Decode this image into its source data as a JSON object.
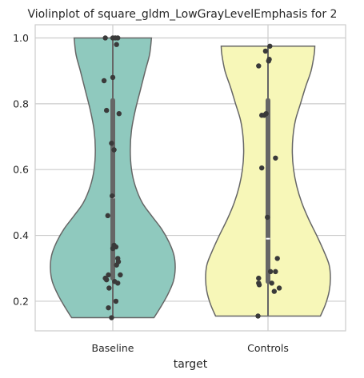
{
  "chart_data": {
    "type": "violin",
    "title": "Violinplot of square_gldm_LowGrayLevelEmphasis for 2",
    "xlabel": "target",
    "ylabel": "",
    "categories": [
      "Baseline",
      "Controls"
    ],
    "ylim": [
      0.11,
      1.04
    ],
    "yticks": [
      "0.2",
      "0.4",
      "0.6",
      "0.8",
      "1.0"
    ],
    "grid": true,
    "colors": {
      "Baseline": "#8fc9be",
      "Controls": "#f7f7b8",
      "outline": "#666666",
      "box": "#666666",
      "points": "#3a3a3a",
      "grid": "#cccccc"
    },
    "violins": [
      {
        "category": "Baseline",
        "range": [
          0.15,
          1.0
        ],
        "quartiles": [
          0.27,
          0.515,
          0.81
        ],
        "median": 0.515,
        "density_profile": [
          [
            0.15,
            0.66
          ],
          [
            0.18,
            0.76
          ],
          [
            0.22,
            0.88
          ],
          [
            0.26,
            0.97
          ],
          [
            0.3,
            1.0
          ],
          [
            0.34,
            0.98
          ],
          [
            0.38,
            0.9
          ],
          [
            0.42,
            0.78
          ],
          [
            0.46,
            0.62
          ],
          [
            0.5,
            0.47
          ],
          [
            0.55,
            0.36
          ],
          [
            0.6,
            0.3
          ],
          [
            0.66,
            0.28
          ],
          [
            0.72,
            0.3
          ],
          [
            0.78,
            0.36
          ],
          [
            0.84,
            0.44
          ],
          [
            0.9,
            0.52
          ],
          [
            0.95,
            0.59
          ],
          [
            1.0,
            0.62
          ]
        ],
        "points": [
          1.0,
          1.0,
          1.0,
          1.0,
          0.98,
          0.88,
          0.87,
          0.78,
          0.77,
          0.68,
          0.66,
          0.52,
          0.46,
          0.37,
          0.365,
          0.36,
          0.33,
          0.32,
          0.31,
          0.28,
          0.28,
          0.27,
          0.265,
          0.26,
          0.255,
          0.24,
          0.2,
          0.18,
          0.15
        ],
        "jitter": [
          -0.12,
          0.0,
          0.04,
          0.08,
          0.06,
          0.0,
          -0.14,
          -0.1,
          0.1,
          -0.02,
          0.02,
          -0.01,
          -0.08,
          0.02,
          0.05,
          0.0,
          0.08,
          0.09,
          0.06,
          -0.07,
          0.12,
          -0.12,
          -0.1,
          0.03,
          0.08,
          -0.06,
          0.05,
          -0.07,
          -0.02
        ]
      },
      {
        "category": "Controls",
        "range": [
          0.155,
          0.975
        ],
        "quartiles": [
          0.26,
          0.39,
          0.81
        ],
        "median": 0.39,
        "density_profile": [
          [
            0.155,
            0.84
          ],
          [
            0.19,
            0.92
          ],
          [
            0.23,
            0.98
          ],
          [
            0.27,
            1.0
          ],
          [
            0.31,
            0.98
          ],
          [
            0.35,
            0.9
          ],
          [
            0.4,
            0.78
          ],
          [
            0.45,
            0.65
          ],
          [
            0.5,
            0.54
          ],
          [
            0.55,
            0.46
          ],
          [
            0.6,
            0.41
          ],
          [
            0.65,
            0.39
          ],
          [
            0.7,
            0.4
          ],
          [
            0.75,
            0.44
          ],
          [
            0.8,
            0.52
          ],
          [
            0.85,
            0.6
          ],
          [
            0.9,
            0.69
          ],
          [
            0.95,
            0.74
          ],
          [
            0.975,
            0.75
          ]
        ],
        "points": [
          0.975,
          0.96,
          0.935,
          0.93,
          0.915,
          0.77,
          0.765,
          0.765,
          0.635,
          0.605,
          0.455,
          0.33,
          0.29,
          0.29,
          0.27,
          0.255,
          0.255,
          0.25,
          0.24,
          0.23,
          0.155
        ],
        "jitter": [
          0.03,
          -0.04,
          0.02,
          0.01,
          -0.15,
          -0.03,
          -0.1,
          -0.06,
          0.12,
          -0.1,
          -0.01,
          0.15,
          0.04,
          0.12,
          -0.15,
          0.06,
          -0.15,
          -0.14,
          0.18,
          0.1,
          -0.16
        ]
      }
    ]
  }
}
